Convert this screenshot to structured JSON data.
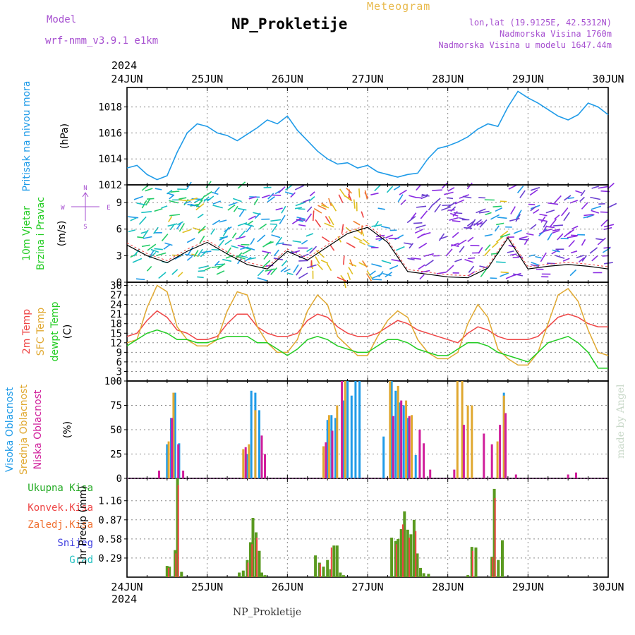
{
  "header": {
    "model_label": "Model",
    "model_name": "wrf-nmm_v3.9.1  e1km",
    "station": "NP_Prokletije",
    "meteogram": "Meteogram",
    "lonlat": "lon,lat (19.9125E, 42.5312N)",
    "altitude": "Nadmorska Visina 1760m",
    "altitude_model": "Nadmorska Visina u modelu 1647.44m",
    "year_top": "2024",
    "year_bottom": "2024",
    "footer": "NP_Prokletije",
    "made_by": "made by Angel"
  },
  "colors": {
    "pressure": "#1f9be8",
    "wind_green": "#22cc22",
    "temp2m": "#ee4444",
    "sfc_temp": "#e0a830",
    "dewpoint": "#22cc22",
    "high_cloud": "#1f9be8",
    "mid_cloud": "#e0a830",
    "low_cloud": "#d01f9b",
    "axis_purple": "#a64fd0",
    "prec_total": "#5a9a20",
    "prec_conv": "#ee4444",
    "prec_frozen": "#f07030",
    "snow": "#4040e0",
    "graupel": "#20c0c0"
  },
  "chart_data": [
    {
      "type": "line",
      "panel": "pressure",
      "ylabel_lines": [
        "Pritisak na nivou mora"
      ],
      "unit": "(hPa)",
      "ylim": [
        1012,
        1019.5
      ],
      "yticks": [
        1012,
        1014,
        1016,
        1018
      ],
      "x_ticks": [
        "24JUN",
        "25JUN",
        "26JUN",
        "27JUN",
        "28JUN",
        "29JUN",
        "30JUN"
      ],
      "x": [
        0,
        0.125,
        0.25,
        0.375,
        0.5,
        0.625,
        0.75,
        0.875,
        1,
        1.125,
        1.25,
        1.375,
        1.5,
        1.625,
        1.75,
        1.875,
        2,
        2.125,
        2.25,
        2.375,
        2.5,
        2.625,
        2.75,
        2.875,
        3,
        3.125,
        3.25,
        3.375,
        3.5,
        3.625,
        3.75,
        3.875,
        4,
        4.125,
        4.25,
        4.375,
        4.5,
        4.625,
        4.75,
        4.875,
        5,
        5.125,
        5.25,
        5.375,
        5.5,
        5.625,
        5.75,
        5.875,
        6
      ],
      "values": [
        1013.3,
        1013.5,
        1012.8,
        1012.4,
        1012.7,
        1014.5,
        1016.0,
        1016.7,
        1016.5,
        1016.0,
        1015.8,
        1015.4,
        1015.9,
        1016.4,
        1017.0,
        1016.7,
        1017.3,
        1016.2,
        1015.4,
        1014.6,
        1014.0,
        1013.6,
        1013.7,
        1013.3,
        1013.5,
        1013.0,
        1012.8,
        1012.6,
        1012.8,
        1012.9,
        1014.0,
        1014.8,
        1015.0,
        1015.3,
        1015.7,
        1016.3,
        1016.7,
        1016.5,
        1018.0,
        1019.2,
        1018.7,
        1018.3,
        1017.8,
        1017.3,
        1017.0,
        1017.4,
        1018.3,
        1018.0,
        1017.4
      ],
      "series": [
        {
          "name": "Pritisak na nivou mora",
          "color": "#1f9be8"
        }
      ]
    },
    {
      "type": "line",
      "panel": "wind",
      "ylabel_lines": [
        "10m Vjetar",
        "Brzina i Pravac"
      ],
      "unit": "(m/s)",
      "compass": [
        "N",
        "S",
        "W",
        "E"
      ],
      "ylim": [
        0,
        11
      ],
      "yticks": [
        0,
        3,
        6,
        9
      ],
      "x": [
        0,
        0.25,
        0.5,
        0.75,
        1,
        1.25,
        1.5,
        1.75,
        2,
        2.25,
        2.5,
        2.75,
        3,
        3.25,
        3.5,
        3.75,
        4,
        4.25,
        4.5,
        4.75,
        5,
        5.25,
        5.5,
        5.75,
        6
      ],
      "values": [
        4.2,
        3.0,
        2.2,
        3.5,
        4.5,
        3.2,
        2.0,
        1.5,
        3.5,
        2.5,
        4.0,
        5.5,
        6.2,
        4.5,
        1.2,
        0.9,
        0.6,
        0.5,
        1.6,
        5.0,
        1.5,
        1.8,
        2.0,
        1.8,
        1.5
      ],
      "direction_colored_background": true
    },
    {
      "type": "line",
      "panel": "temperature",
      "ylabel_lines": [
        "2m Temp",
        "SFC Temp",
        "dewpt Temp"
      ],
      "unit": "(C)",
      "ylim": [
        0,
        31
      ],
      "yticks": [
        0,
        3,
        6,
        9,
        12,
        15,
        18,
        21,
        24,
        27,
        30
      ],
      "x": [
        0,
        0.125,
        0.25,
        0.375,
        0.5,
        0.625,
        0.75,
        0.875,
        1,
        1.125,
        1.25,
        1.375,
        1.5,
        1.625,
        1.75,
        1.875,
        2,
        2.125,
        2.25,
        2.375,
        2.5,
        2.625,
        2.75,
        2.875,
        3,
        3.125,
        3.25,
        3.375,
        3.5,
        3.625,
        3.75,
        3.875,
        4,
        4.125,
        4.25,
        4.375,
        4.5,
        4.625,
        4.75,
        4.875,
        5,
        5.125,
        5.25,
        5.375,
        5.5,
        5.625,
        5.75,
        5.875,
        6
      ],
      "series": [
        {
          "name": "2m Temp",
          "color": "#ee4444",
          "values": [
            14,
            15,
            19,
            22,
            20,
            16,
            15,
            13,
            13,
            14,
            18,
            21,
            21,
            17,
            15,
            14,
            14,
            15,
            19,
            21,
            20,
            17,
            15,
            14,
            14,
            15,
            17,
            19,
            18,
            16,
            15,
            14,
            13,
            12,
            15,
            17,
            16,
            14,
            13,
            13,
            13,
            14,
            17,
            20,
            21,
            20,
            18,
            17,
            17
          ]
        },
        {
          "name": "SFC Temp",
          "color": "#e0a830",
          "values": [
            12,
            13,
            23,
            30,
            28,
            17,
            13,
            11,
            11,
            13,
            22,
            28,
            27,
            17,
            12,
            9,
            9,
            13,
            22,
            27,
            24,
            14,
            11,
            8,
            8,
            14,
            19,
            22,
            20,
            13,
            9,
            7,
            7,
            9,
            18,
            24,
            20,
            10,
            7,
            5,
            5,
            9,
            18,
            27,
            29,
            25,
            16,
            9,
            8
          ]
        },
        {
          "name": "dewpt Temp",
          "color": "#22cc22",
          "values": [
            11,
            13,
            15,
            16,
            15,
            13,
            13,
            12,
            12,
            13,
            14,
            14,
            14,
            12,
            12,
            10,
            8,
            10,
            13,
            14,
            13,
            11,
            10,
            9,
            9,
            11,
            13,
            13,
            12,
            10,
            9,
            8,
            8,
            10,
            12,
            12,
            11,
            9,
            8,
            7,
            6,
            9,
            12,
            13,
            14,
            12,
            9,
            4,
            4
          ]
        }
      ]
    },
    {
      "type": "bar",
      "panel": "clouds",
      "ylabel_lines": [
        "Visoka Oblacnost",
        "Srednja Oblacnost",
        "Niska Oblacnost"
      ],
      "unit": "(%)",
      "ylim": [
        0,
        100
      ],
      "yticks": [
        0,
        25,
        50,
        75,
        100
      ],
      "series": [
        {
          "name": "Visoka Oblacnost",
          "color": "#1f9be8",
          "x": [
            0.5,
            0.55,
            0.6,
            0.65,
            1.5,
            1.55,
            1.6,
            1.65,
            2.5,
            2.55,
            2.6,
            2.7,
            2.75,
            2.8,
            2.85,
            2.9,
            3.2,
            3.3,
            3.35,
            3.4,
            3.45,
            3.5,
            3.6,
            4.6,
            4.7
          ],
          "values": [
            35,
            62,
            88,
            36,
            25,
            90,
            88,
            70,
            60,
            65,
            62,
            80,
            100,
            85,
            100,
            100,
            43,
            100,
            90,
            78,
            75,
            62,
            24,
            0,
            88
          ]
        },
        {
          "name": "Srednja Oblacnost",
          "color": "#e0a830",
          "x": [
            0.52,
            0.58,
            1.45,
            1.52,
            1.6,
            2.45,
            2.52,
            2.62,
            2.72,
            3.28,
            3.38,
            3.48,
            3.55,
            4.12,
            4.18,
            4.25,
            4.3,
            4.62,
            4.7
          ],
          "values": [
            38,
            88,
            30,
            35,
            70,
            33,
            65,
            75,
            100,
            100,
            95,
            80,
            65,
            100,
            100,
            75,
            75,
            38,
            85
          ]
        },
        {
          "name": "Niska Oblacnost",
          "color": "#d01f9b",
          "x": [
            0.4,
            0.56,
            0.64,
            0.7,
            1.48,
            1.68,
            1.72,
            2.48,
            2.56,
            2.68,
            3.32,
            3.42,
            3.52,
            3.65,
            3.7,
            3.78,
            4.08,
            4.2,
            4.45,
            4.55,
            4.65,
            4.72,
            4.85,
            5.5,
            5.6
          ],
          "values": [
            8,
            62,
            35,
            8,
            32,
            44,
            25,
            37,
            49,
            100,
            64,
            80,
            64,
            50,
            36,
            9,
            9,
            55,
            46,
            35,
            55,
            67,
            4,
            4,
            6
          ]
        }
      ]
    },
    {
      "type": "bar",
      "panel": "precipitation",
      "ylabel_lines": [
        "1hr Precip"
      ],
      "unit": "(mm)",
      "legend": [
        "Ukupna Kisa",
        "Konvek.Kisa",
        "Zaledj.Kisa",
        "Snijeg",
        "Grad"
      ],
      "ylim": [
        0,
        1.5
      ],
      "yticks": [
        0.29,
        0.58,
        0.87,
        1.16
      ],
      "x_ticks": [
        "24JUN",
        "25JUN",
        "26JUN",
        "27JUN",
        "28JUN",
        "29JUN",
        "30JUN"
      ],
      "series": [
        {
          "name": "Ukupna Kisa",
          "color": "#5a9a20",
          "x": [
            0.5,
            0.53,
            0.6,
            0.63,
            0.68,
            1.4,
            1.45,
            1.5,
            1.54,
            1.57,
            1.61,
            1.65,
            1.68,
            1.72,
            2.35,
            2.4,
            2.45,
            2.5,
            2.54,
            2.58,
            2.62,
            2.66,
            2.7,
            3.3,
            3.35,
            3.38,
            3.42,
            3.46,
            3.5,
            3.54,
            3.58,
            3.62,
            3.66,
            3.7,
            3.76,
            4.25,
            4.3,
            4.35,
            4.55,
            4.58,
            4.63,
            4.68
          ],
          "values": [
            0.17,
            0.16,
            0.41,
            1.5,
            0.08,
            0.07,
            0.1,
            0.26,
            0.53,
            0.9,
            0.68,
            0.4,
            0.07,
            0.03,
            0.33,
            0.22,
            0.16,
            0.26,
            0.12,
            0.48,
            0.48,
            0.07,
            0.03,
            0.6,
            0.55,
            0.58,
            0.73,
            1.0,
            0.72,
            0.65,
            0.87,
            0.36,
            0.14,
            0.06,
            0.05,
            0.03,
            0.46,
            0.45,
            0.31,
            1.34,
            0.26,
            0.56
          ]
        },
        {
          "name": "Konvek.Kisa",
          "color": "#ee4444",
          "x": [
            0.52,
            0.61,
            0.64,
            1.51,
            1.56,
            1.62,
            2.41,
            2.55,
            3.36,
            3.44,
            3.52,
            3.6,
            4.31,
            4.56,
            4.59
          ],
          "values": [
            0.14,
            0.36,
            1.4,
            0.22,
            0.5,
            0.6,
            0.2,
            0.45,
            0.5,
            0.8,
            0.6,
            0.7,
            0.4,
            0.3,
            1.2
          ]
        }
      ]
    }
  ]
}
